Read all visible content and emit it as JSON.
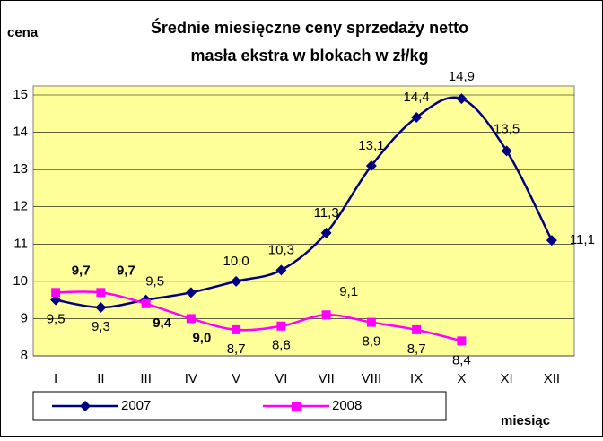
{
  "chart_data": {
    "type": "line",
    "title_lines": [
      "Średnie miesięczne ceny sprzedaży netto",
      "masła ekstra w blokach w zł/kg"
    ],
    "y_label": "cena",
    "x_label": "miesiąc",
    "categories": [
      "I",
      "II",
      "III",
      "IV",
      "V",
      "VI",
      "VII",
      "VIII",
      "IX",
      "X",
      "XI",
      "XII"
    ],
    "series": [
      {
        "name": "2007",
        "color": "#000080",
        "marker": "diamond",
        "values": [
          9.5,
          9.3,
          9.5,
          9.7,
          10.0,
          10.3,
          11.3,
          13.1,
          14.4,
          14.9,
          13.5,
          11.1
        ],
        "value_labels": [
          "9,5",
          "9,3",
          "9,5",
          null,
          "10,0",
          "10,3",
          "11,3",
          "13,1",
          "14,4",
          "14,9",
          "13,5",
          "11,1"
        ]
      },
      {
        "name": "2008",
        "color": "#ff00ff",
        "marker": "square",
        "values": [
          9.7,
          9.7,
          9.4,
          9.0,
          8.7,
          8.8,
          9.1,
          8.9,
          8.7,
          8.4,
          null,
          null
        ],
        "value_labels": [
          "9,7",
          "9,7",
          "9,4",
          "9,0",
          "8,7",
          "8,8",
          "9,1",
          "8,9",
          "8,7",
          "8,4",
          null,
          null
        ],
        "value_label_bold": [
          true,
          true,
          true,
          true,
          false,
          false,
          false,
          false,
          false,
          false,
          false,
          false
        ]
      }
    ],
    "ylim": [
      8,
      15
    ],
    "yticks": [
      8,
      9,
      10,
      11,
      12,
      13,
      14,
      15
    ],
    "grid": true,
    "smooth": true,
    "legend": "bottom"
  }
}
